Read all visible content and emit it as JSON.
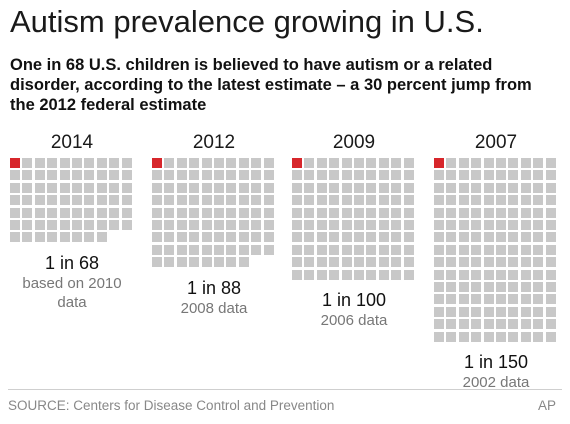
{
  "header": {
    "title": "Autism prevalence growing in U.S.",
    "subtitle": "One in 68 U.S. children is believed to have autism or a related disorder, according to the latest estimate – a 30 percent jump from the 2012 federal estimate"
  },
  "footer": {
    "source": "SOURCE: Centers for Disease Control and Prevention",
    "credit": "AP"
  },
  "colors": {
    "highlight": "#d7262b",
    "cell": "#c8c8c8"
  },
  "chart_data": {
    "type": "unit_grid",
    "unit_note": "one square represents one child",
    "series": [
      {
        "year": "2014",
        "ratio_label": "1 in 68",
        "children": 68,
        "note": "based on 2010 data"
      },
      {
        "year": "2012",
        "ratio_label": "1 in 88",
        "children": 88,
        "note": "2008 data"
      },
      {
        "year": "2009",
        "ratio_label": "1 in 100",
        "children": 100,
        "note": "2006 data"
      },
      {
        "year": "2007",
        "ratio_label": "1 in 150",
        "children": 150,
        "note": "2002 data"
      }
    ]
  }
}
